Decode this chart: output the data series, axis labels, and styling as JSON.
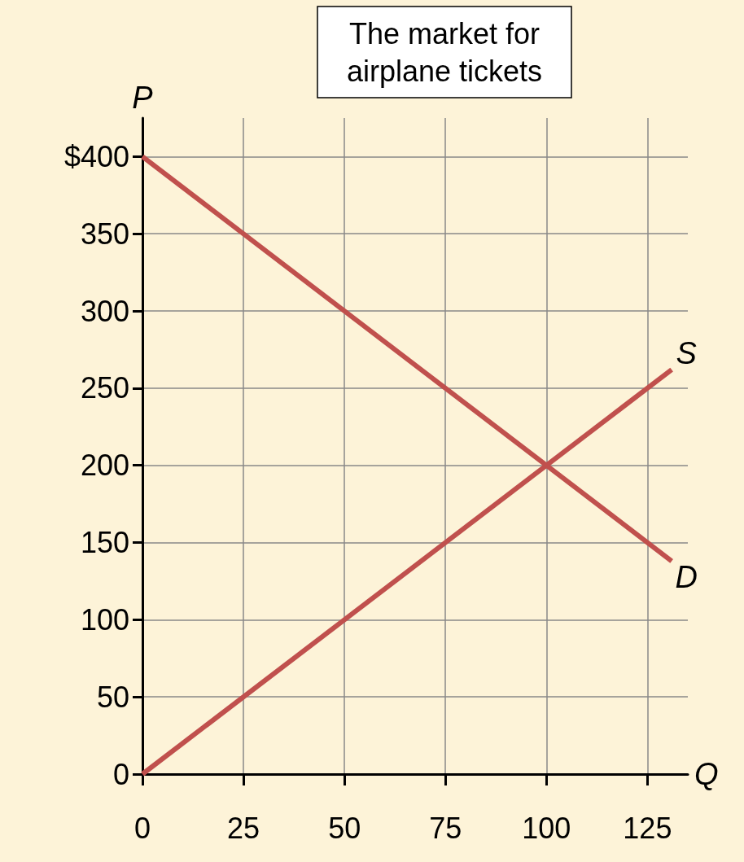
{
  "chart_data": {
    "type": "line",
    "title": "The market for\nairplane tickets",
    "xlabel": "Q",
    "ylabel": "P",
    "x": [
      0,
      131
    ],
    "xlim": [
      0,
      135
    ],
    "xticks": [
      0,
      25,
      50,
      75,
      100,
      125
    ],
    "ylim": [
      0,
      425
    ],
    "yticks": [
      0,
      50,
      100,
      150,
      200,
      250,
      300,
      350,
      {
        "value": 400,
        "label": "$400"
      }
    ],
    "grid": true,
    "marker": "none",
    "line_style": "solid",
    "legend": false,
    "series": [
      {
        "name": "S",
        "color": "#c0504d",
        "values": [
          0,
          262
        ]
      },
      {
        "name": "D",
        "color": "#c0504d",
        "values": [
          400,
          138
        ]
      }
    ]
  }
}
